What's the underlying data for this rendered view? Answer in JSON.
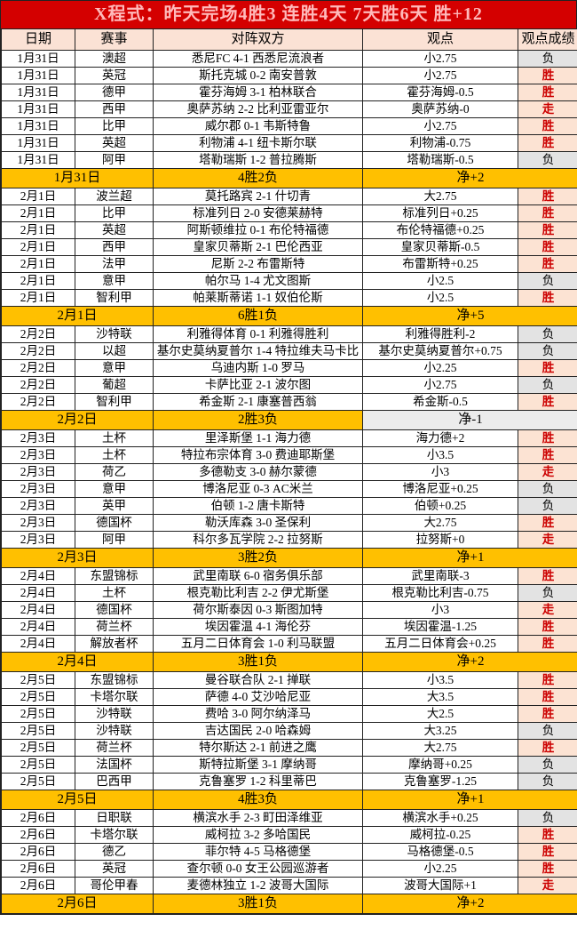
{
  "title": "X程式：昨天完场4胜3 连胜4天 7天胜6天 胜+12",
  "columns": [
    "日期",
    "赛事",
    "对阵双方",
    "观点",
    "观点成绩"
  ],
  "colors": {
    "title_bg": "#d40000",
    "title_text": "#ffbabb",
    "header_bg": "#fbe2d5",
    "win_bg": "#fce3d3",
    "win_text": "#cc0000",
    "loss_bg": "#e3e3e3",
    "summary_bg": "#ffc000",
    "net_gray_bg": "#ececec",
    "border": "#222222"
  },
  "sections": [
    {
      "date": "1月31日",
      "matches": [
        {
          "league": "澳超",
          "match": "悉尼FC 4-1 西悉尼流浪者",
          "pick": "小2.75",
          "result": "负"
        },
        {
          "league": "英冠",
          "match": "斯托克城 0-2 南安普敦",
          "pick": "小2.75",
          "result": "胜"
        },
        {
          "league": "德甲",
          "match": "霍芬海姆 3-1 柏林联合",
          "pick": "霍芬海姆-0.5",
          "result": "胜"
        },
        {
          "league": "西甲",
          "match": "奥萨苏纳 2-2 比利亚雷亚尔",
          "pick": "奥萨苏纳-0",
          "result": "走"
        },
        {
          "league": "比甲",
          "match": "威尔郡 0-1 韦斯特鲁",
          "pick": "小2.75",
          "result": "胜"
        },
        {
          "league": "英超",
          "match": "利物浦 4-1 纽卡斯尔联",
          "pick": "利物浦-0.75",
          "result": "胜"
        },
        {
          "league": "阿甲",
          "match": "塔勒瑞斯 1-2 普拉腾斯",
          "pick": "塔勒瑞斯-0.5",
          "result": "负"
        }
      ],
      "summary": {
        "record": "4胜2负",
        "net": "净+2"
      }
    },
    {
      "date": "2月1日",
      "matches": [
        {
          "league": "波兰超",
          "match": "莫托路宾 2-1 什切青",
          "pick": "大2.75",
          "result": "胜"
        },
        {
          "league": "比甲",
          "match": "标准列日 2-0 安德莱赫特",
          "pick": "标准列日+0.25",
          "result": "胜"
        },
        {
          "league": "英超",
          "match": "阿斯顿维拉 0-1 布伦特福德",
          "pick": "布伦特福德+0.25",
          "result": "胜"
        },
        {
          "league": "西甲",
          "match": "皇家贝蒂斯 2-1 巴伦西亚",
          "pick": "皇家贝蒂斯-0.5",
          "result": "胜"
        },
        {
          "league": "法甲",
          "match": "尼斯 2-2 布雷斯特",
          "pick": "布雷斯特+0.25",
          "result": "胜"
        },
        {
          "league": "意甲",
          "match": "帕尔马 1-4 尤文图斯",
          "pick": "小2.5",
          "result": "负"
        },
        {
          "league": "智利甲",
          "match": "帕莱斯蒂诺 1-1 奴伯伦斯",
          "pick": "小2.5",
          "result": "胜"
        }
      ],
      "summary": {
        "record": "6胜1负",
        "net": "净+5"
      }
    },
    {
      "date": "2月2日",
      "matches": [
        {
          "league": "沙特联",
          "match": "利雅得体育 0-1 利雅得胜利",
          "pick": "利雅得胜利-2",
          "result": "负"
        },
        {
          "league": "以超",
          "match": "基尔史莫纳夏普尔 1-4 特拉维夫马卡比",
          "pick": "基尔史莫纳夏普尔+0.75",
          "result": "负"
        },
        {
          "league": "意甲",
          "match": "乌迪内斯 1-0 罗马",
          "pick": "小2.25",
          "result": "胜"
        },
        {
          "league": "葡超",
          "match": "卡萨比亚 2-1 波尔图",
          "pick": "小2.75",
          "result": "负"
        },
        {
          "league": "智利甲",
          "match": "希金斯 2-1 康塞普西翁",
          "pick": "希金斯-0.5",
          "result": "胜"
        }
      ],
      "summary": {
        "record": "2胜3负",
        "net": "净-1"
      }
    },
    {
      "date": "2月3日",
      "matches": [
        {
          "league": "土杯",
          "match": "里泽斯堡 1-1 海力德",
          "pick": "海力德+2",
          "result": "胜"
        },
        {
          "league": "土杯",
          "match": "特拉布宗体育 3-0 费迪耶斯堡",
          "pick": "小3.5",
          "result": "胜"
        },
        {
          "league": "荷乙",
          "match": "多德勒支 3-0 赫尔蒙德",
          "pick": "小3",
          "result": "走"
        },
        {
          "league": "意甲",
          "match": "博洛尼亚 0-3 AC米兰",
          "pick": "博洛尼亚+0.25",
          "result": "负"
        },
        {
          "league": "英甲",
          "match": "伯顿 1-2 唐卡斯特",
          "pick": "伯顿+0.25",
          "result": "负"
        },
        {
          "league": "德国杯",
          "match": "勒沃库森 3-0 圣保利",
          "pick": "大2.75",
          "result": "胜"
        },
        {
          "league": "阿甲",
          "match": "科尔多瓦学院 2-2 拉努斯",
          "pick": "拉努斯+0",
          "result": "走"
        }
      ],
      "summary": {
        "record": "3胜2负",
        "net": "净+1"
      }
    },
    {
      "date": "2月4日",
      "matches": [
        {
          "league": "东盟锦标",
          "match": "武里南联 6-0 宿务俱乐部",
          "pick": "武里南联-3",
          "result": "胜"
        },
        {
          "league": "土杯",
          "match": "根克勒比利吉 2-2 伊尤斯堡",
          "pick": "根克勒比利吉-0.75",
          "result": "负"
        },
        {
          "league": "德国杯",
          "match": "荷尔斯泰因 0-3 斯图加特",
          "pick": "小3",
          "result": "走"
        },
        {
          "league": "荷兰杯",
          "match": "埃因霍温 4-1 海伦芬",
          "pick": "埃因霍温-1.25",
          "result": "胜"
        },
        {
          "league": "解放者杯",
          "match": "五月二日体育会 1-0 利马联盟",
          "pick": "五月二日体育会+0.25",
          "result": "胜"
        }
      ],
      "summary": {
        "record": "3胜1负",
        "net": "净+2"
      }
    },
    {
      "date": "2月5日",
      "matches": [
        {
          "league": "东盟锦标",
          "match": "曼谷联合队 2-1 掸联",
          "pick": "小3.5",
          "result": "胜"
        },
        {
          "league": "卡塔尔联",
          "match": "萨德 4-0 艾沙哈尼亚",
          "pick": "大3.5",
          "result": "胜"
        },
        {
          "league": "沙特联",
          "match": "费哈 3-0 阿尔纳泽马",
          "pick": "大2.5",
          "result": "胜"
        },
        {
          "league": "沙特联",
          "match": "吉达国民 2-0 哈森姆",
          "pick": "大3.25",
          "result": "负"
        },
        {
          "league": "荷兰杯",
          "match": "特尔斯达 2-1 前进之鹰",
          "pick": "大2.75",
          "result": "胜"
        },
        {
          "league": "法国杯",
          "match": "斯特拉斯堡 3-1 摩纳哥",
          "pick": "摩纳哥+0.25",
          "result": "负"
        },
        {
          "league": "巴西甲",
          "match": "克鲁塞罗 1-2 科里蒂巴",
          "pick": "克鲁塞罗-1.25",
          "result": "负"
        }
      ],
      "summary": {
        "record": "4胜3负",
        "net": "净+1"
      }
    },
    {
      "date": "2月6日",
      "matches": [
        {
          "league": "日职联",
          "match": "横滨水手 2-3 町田泽维亚",
          "pick": "横滨水手+0.25",
          "result": "负"
        },
        {
          "league": "卡塔尔联",
          "match": "威柯拉 3-2 多哈国民",
          "pick": "威柯拉-0.25",
          "result": "胜"
        },
        {
          "league": "德乙",
          "match": "菲尔特 4-5 马格德堡",
          "pick": "马格德堡-0.5",
          "result": "胜"
        },
        {
          "league": "英冠",
          "match": "查尔顿 0-0 女王公园巡游者",
          "pick": "小2.25",
          "result": "胜"
        },
        {
          "league": "哥伦甲春",
          "match": "麦德林独立 1-2 波哥大国际",
          "pick": "波哥大国际+1",
          "result": "走"
        }
      ],
      "summary": {
        "record": "3胜1负",
        "net": "净+2"
      }
    }
  ]
}
